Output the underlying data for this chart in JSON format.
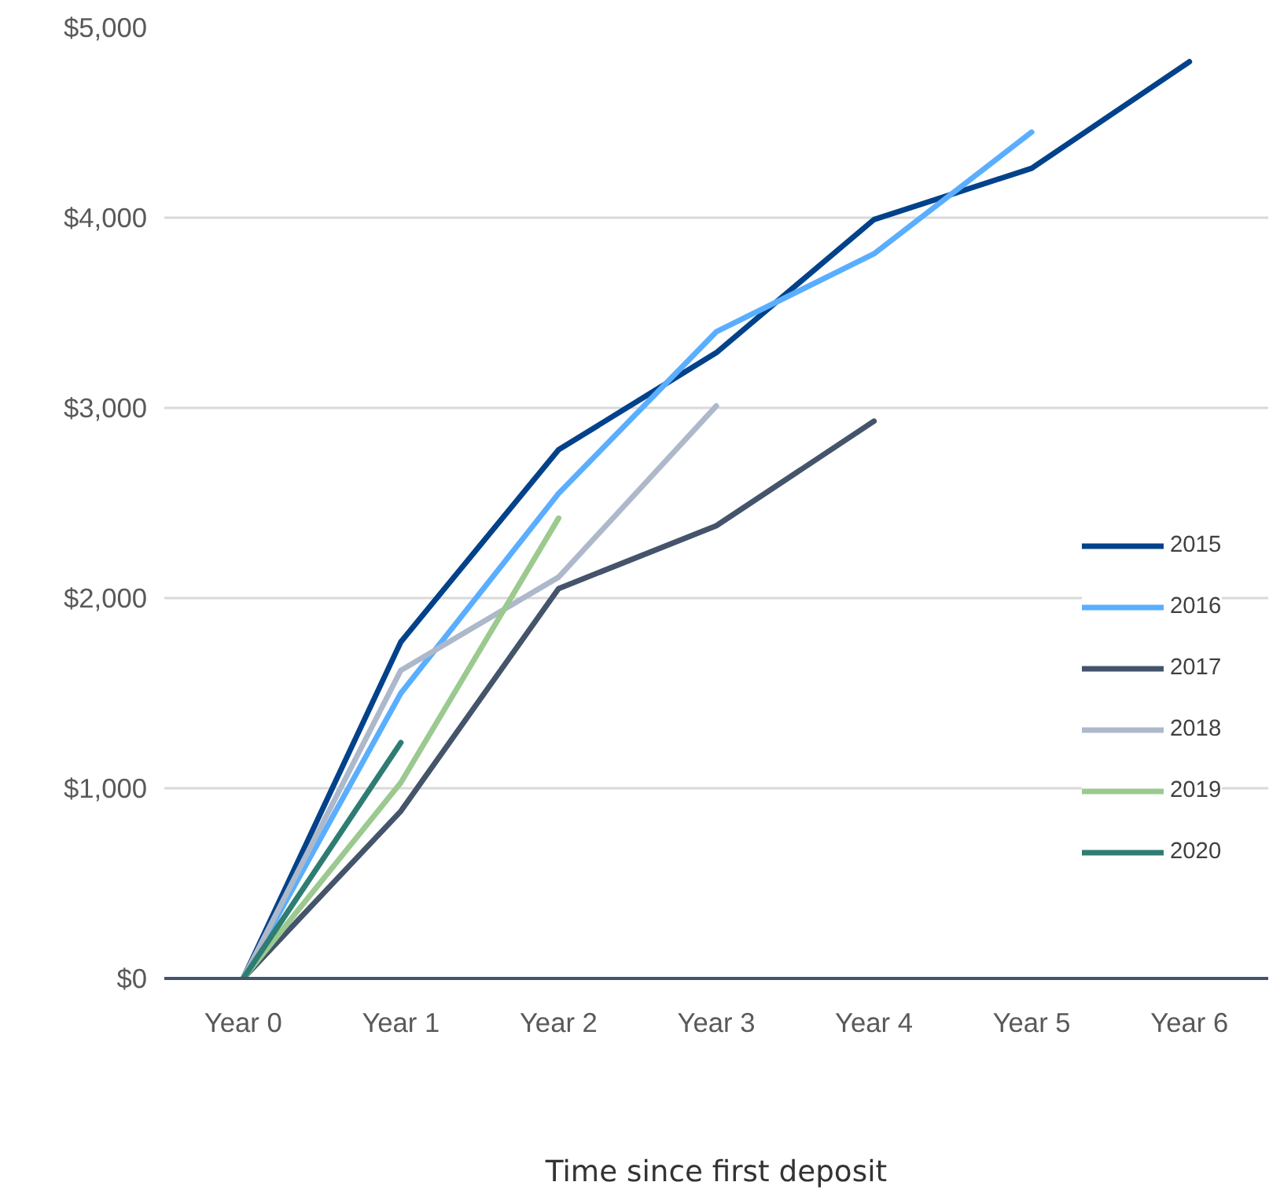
{
  "chart_data": {
    "type": "line",
    "xlabel": "Time since first deposit",
    "categories": [
      "Year 0",
      "Year 1",
      "Year 2",
      "Year 3",
      "Year 4",
      "Year 5",
      "Year 6"
    ],
    "ylim": [
      0,
      5000
    ],
    "yticks": [
      {
        "value": 0,
        "label": "$0"
      },
      {
        "value": 1000,
        "label": "$1,000"
      },
      {
        "value": 2000,
        "label": "$2,000"
      },
      {
        "value": 3000,
        "label": "$3,000"
      },
      {
        "value": 4000,
        "label": "$4,000"
      },
      {
        "value": 5000,
        "label": "$5,000"
      }
    ],
    "grid": "y",
    "legend": "right",
    "marker": "none",
    "line_style": "solid",
    "series": [
      {
        "name": "2015",
        "color": "#02428a",
        "values": [
          0,
          1770,
          2780,
          3290,
          3990,
          4260,
          4820
        ]
      },
      {
        "name": "2016",
        "color": "#5aaeff",
        "values": [
          0,
          1500,
          2550,
          3400,
          3810,
          4450,
          null
        ]
      },
      {
        "name": "2017",
        "color": "#44546a",
        "values": [
          0,
          880,
          2050,
          2380,
          2930,
          null,
          null
        ]
      },
      {
        "name": "2018",
        "color": "#adb9ca",
        "values": [
          0,
          1620,
          2110,
          3010,
          null,
          null,
          null
        ]
      },
      {
        "name": "2019",
        "color": "#9bc98f",
        "values": [
          0,
          1030,
          2420,
          null,
          null,
          null,
          null
        ]
      },
      {
        "name": "2020",
        "color": "#2e7d73",
        "values": [
          0,
          1240,
          null,
          null,
          null,
          null,
          null
        ]
      }
    ]
  }
}
